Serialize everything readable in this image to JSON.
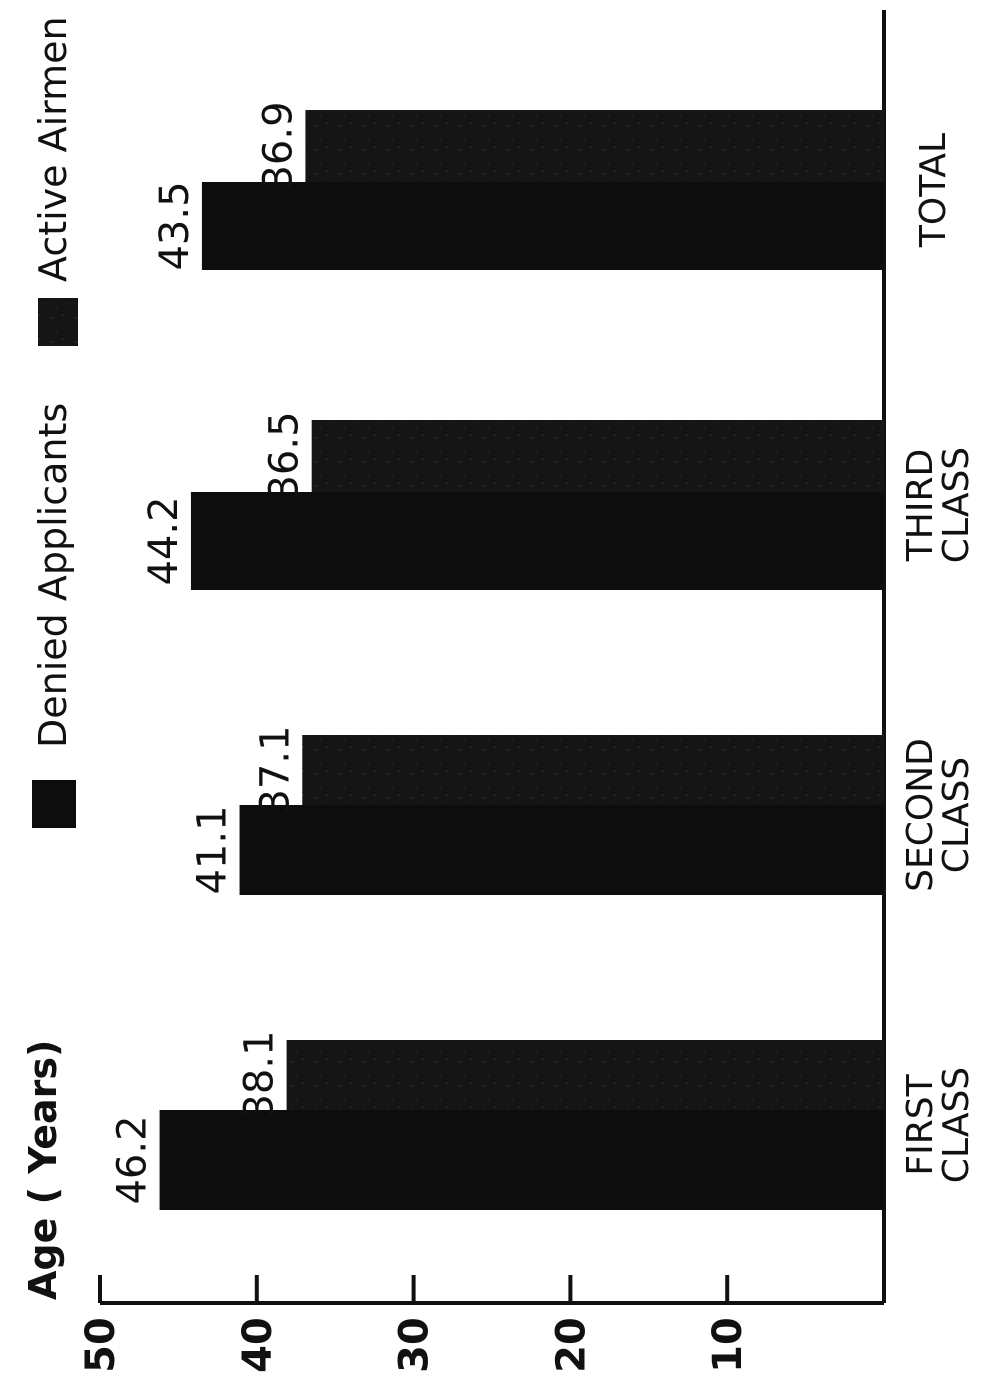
{
  "chart_data": {
    "type": "bar",
    "ylabel": "Age ( Years)",
    "ylim": [
      0,
      50
    ],
    "yticks": [
      {
        "value": 50,
        "label": "50"
      },
      {
        "value": 40,
        "label": "40"
      },
      {
        "value": 30,
        "label": "30"
      },
      {
        "value": 20,
        "label": "20"
      },
      {
        "value": 10,
        "label": "10"
      }
    ],
    "categories": [
      {
        "line1": "FIRST",
        "line2": "CLASS"
      },
      {
        "line1": "SECOND",
        "line2": "CLASS"
      },
      {
        "line1": "THIRD",
        "line2": "CLASS"
      },
      {
        "line1": "TOTAL",
        "line2": ""
      }
    ],
    "series": [
      {
        "name": "Denied Applicants",
        "values": [
          46.2,
          41.1,
          44.2,
          43.5
        ],
        "labels": [
          "46.2",
          "41.1",
          "44.2",
          "43.5"
        ],
        "color": "#0d0d0d"
      },
      {
        "name": "Active Airmen",
        "values": [
          38.1,
          37.1,
          36.5,
          36.9
        ],
        "labels": [
          "38.1",
          "37.1",
          "36.5",
          "36.9"
        ],
        "color": "#1e1e1e"
      }
    ],
    "legend_position": "top",
    "orientation": "rotated-90",
    "grid": false
  }
}
